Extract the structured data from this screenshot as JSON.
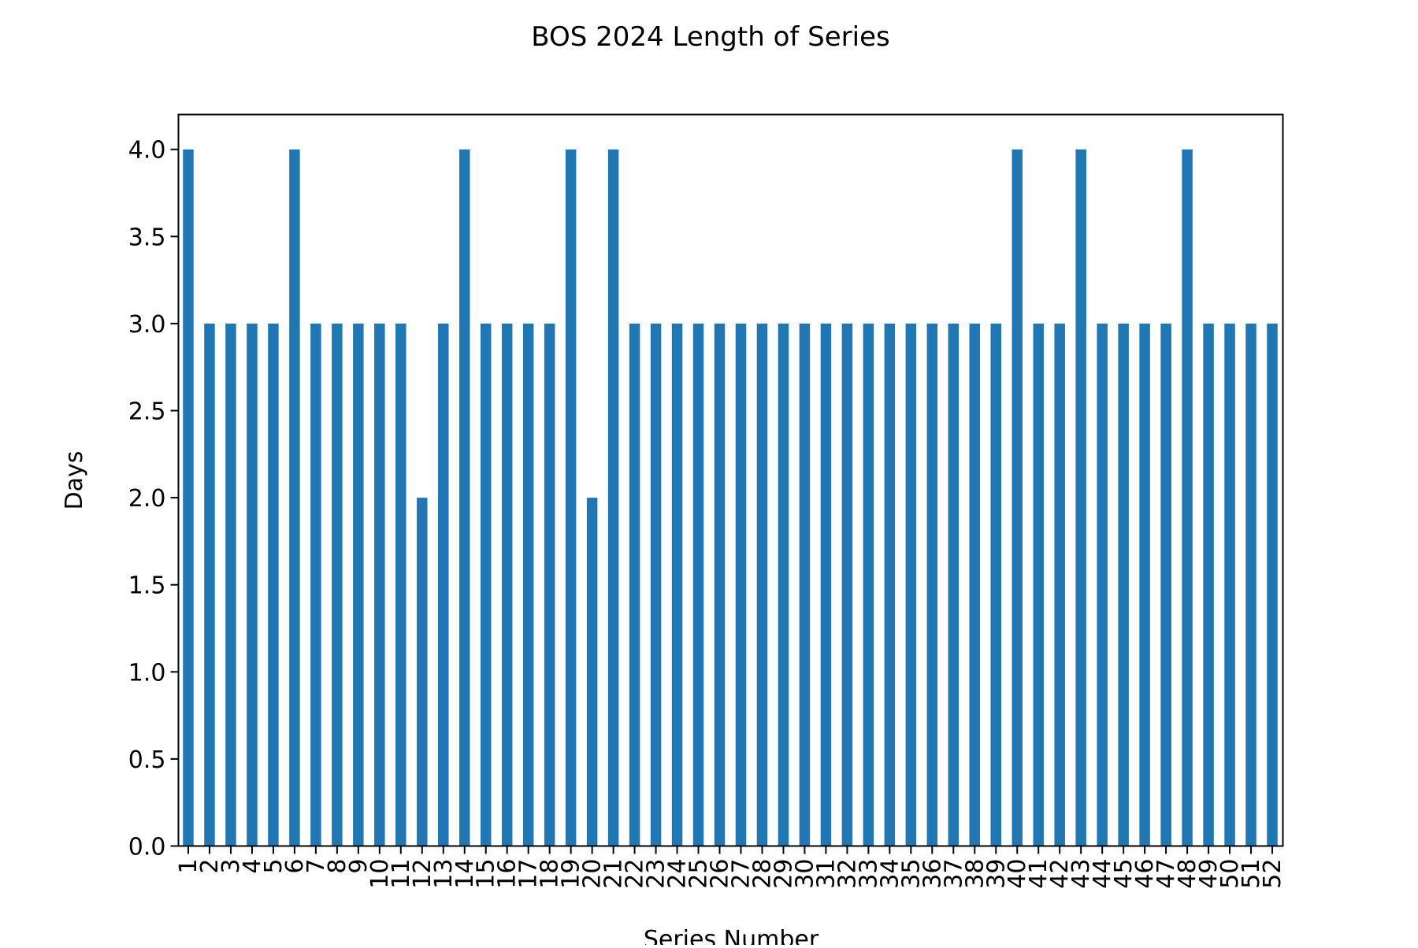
{
  "chart_data": {
    "type": "bar",
    "title": "BOS 2024 Length of Series",
    "xlabel": "Series Number",
    "ylabel": "Days",
    "ylim": [
      0,
      4.2
    ],
    "yticks": [
      0.0,
      0.5,
      1.0,
      1.5,
      2.0,
      2.5,
      3.0,
      3.5,
      4.0
    ],
    "ytick_labels": [
      "0.0",
      "0.5",
      "1.0",
      "1.5",
      "2.0",
      "2.5",
      "3.0",
      "3.5",
      "4.0"
    ],
    "categories": [
      "1",
      "2",
      "3",
      "4",
      "5",
      "6",
      "7",
      "8",
      "9",
      "10",
      "11",
      "12",
      "13",
      "14",
      "15",
      "16",
      "17",
      "18",
      "19",
      "20",
      "21",
      "22",
      "23",
      "24",
      "25",
      "26",
      "27",
      "28",
      "29",
      "30",
      "31",
      "32",
      "33",
      "34",
      "35",
      "36",
      "37",
      "38",
      "39",
      "40",
      "41",
      "42",
      "43",
      "44",
      "45",
      "46",
      "47",
      "48",
      "49",
      "50",
      "51",
      "52"
    ],
    "values": [
      4,
      3,
      3,
      3,
      3,
      4,
      3,
      3,
      3,
      3,
      3,
      2,
      3,
      4,
      3,
      3,
      3,
      3,
      4,
      2,
      4,
      3,
      3,
      3,
      3,
      3,
      3,
      3,
      3,
      3,
      3,
      3,
      3,
      3,
      3,
      3,
      3,
      3,
      3,
      4,
      3,
      3,
      4,
      3,
      3,
      3,
      3,
      4,
      3,
      3,
      3,
      3
    ],
    "bar_color": "#1f77b4",
    "grid": false,
    "legend": "none"
  }
}
